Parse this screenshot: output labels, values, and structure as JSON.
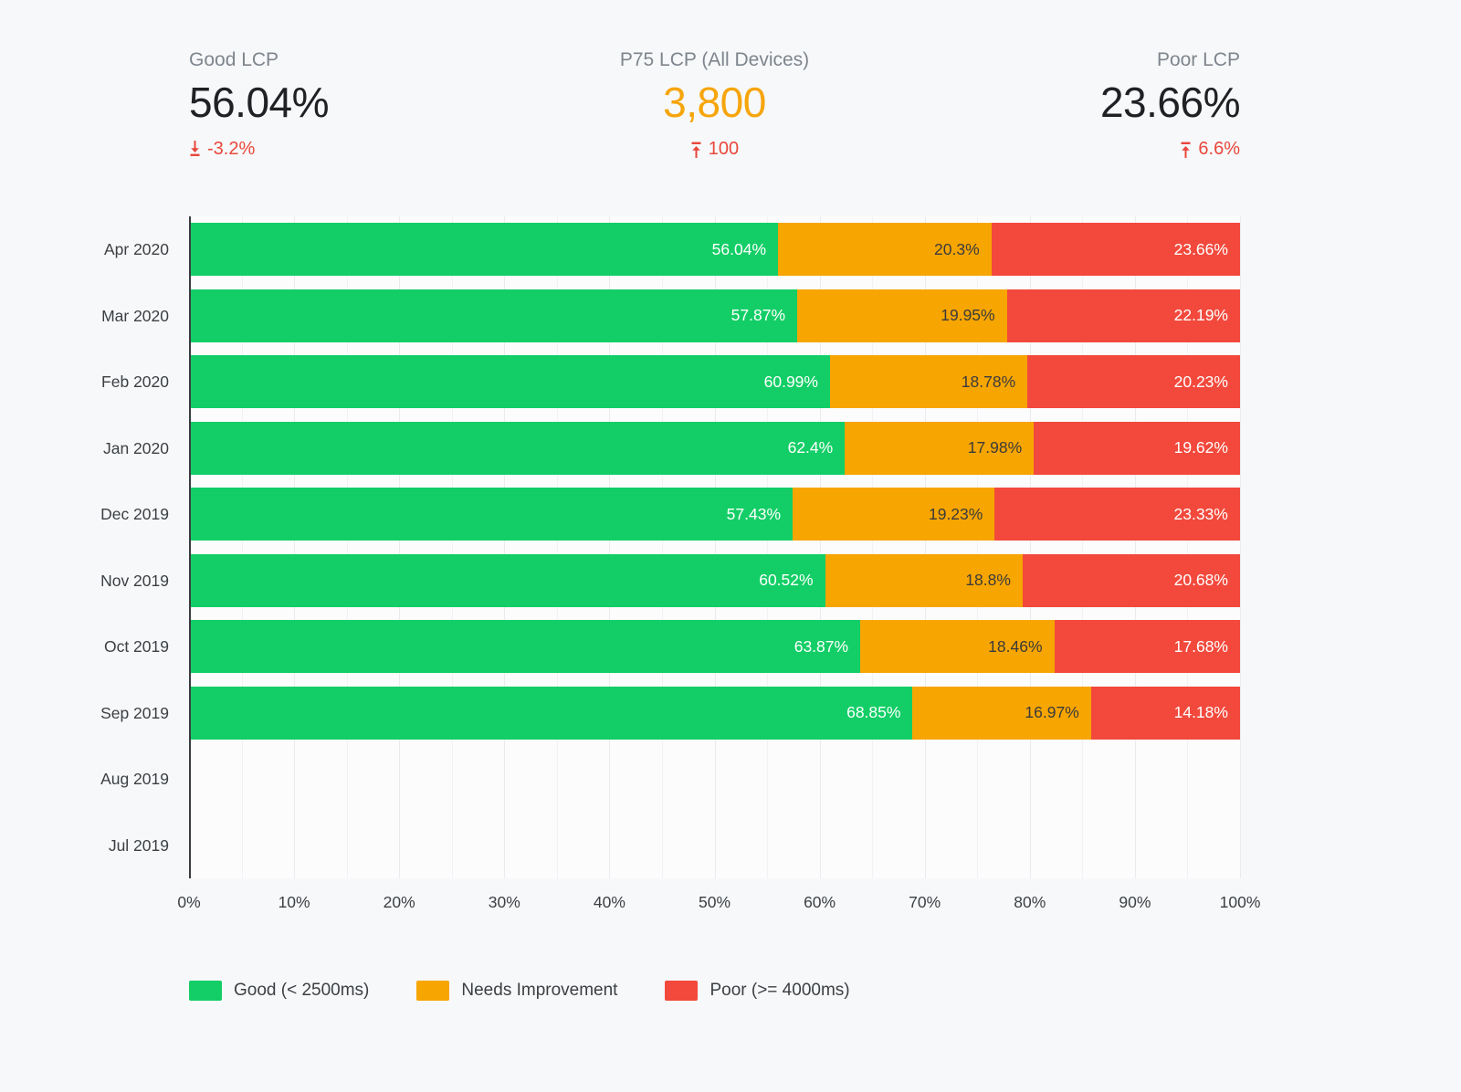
{
  "colors": {
    "good": "#13CE66",
    "needs_improvement": "#F7A501",
    "poor": "#F2493C",
    "delta": "#E8473B",
    "p75_value": "#F6A50B",
    "value_text": "#202124",
    "background": "#F7F8FA"
  },
  "kpis": [
    {
      "id": "good-lcp",
      "label": "Good LCP",
      "value": "56.04%",
      "delta": "-3.2%",
      "trend": "down"
    },
    {
      "id": "p75-lcp",
      "label": "P75 LCP (All Devices)",
      "value": "3,800",
      "delta": "100",
      "trend": "up"
    },
    {
      "id": "poor-lcp",
      "label": "Poor LCP",
      "value": "23.66%",
      "delta": "6.6%",
      "trend": "up"
    }
  ],
  "chart_data": {
    "type": "bar",
    "orientation": "horizontal",
    "stacked": true,
    "title": "",
    "xlabel": "",
    "ylabel": "",
    "xlim": [
      0,
      100
    ],
    "grid": "vertical every 5%",
    "legend_position": "bottom",
    "categories": [
      "Apr 2020",
      "Mar 2020",
      "Feb 2020",
      "Jan 2020",
      "Dec 2019",
      "Nov 2019",
      "Oct 2019",
      "Sep 2019",
      "Aug 2019",
      "Jul 2019"
    ],
    "series": [
      {
        "key": "good",
        "name": "Good (< 2500ms)",
        "color": "#13CE66",
        "label_color": "#FFFFFF",
        "values": [
          56.04,
          57.87,
          60.99,
          62.4,
          57.43,
          60.52,
          63.87,
          68.85,
          null,
          null
        ],
        "labels": [
          "56.04%",
          "57.87%",
          "60.99%",
          "62.4%",
          "57.43%",
          "60.52%",
          "63.87%",
          "68.85%",
          "",
          ""
        ]
      },
      {
        "key": "needs-improvement",
        "name": "Needs Improvement",
        "color": "#F7A501",
        "label_color": "#3B3B3B",
        "values": [
          20.3,
          19.95,
          18.78,
          17.98,
          19.23,
          18.8,
          18.46,
          16.97,
          null,
          null
        ],
        "labels": [
          "20.3%",
          "19.95%",
          "18.78%",
          "17.98%",
          "19.23%",
          "18.8%",
          "18.46%",
          "16.97%",
          "",
          ""
        ]
      },
      {
        "key": "poor",
        "name": "Poor (>= 4000ms)",
        "color": "#F2493C",
        "label_color": "#FFFFFF",
        "values": [
          23.66,
          22.19,
          20.23,
          19.62,
          23.33,
          20.68,
          17.68,
          14.18,
          null,
          null
        ],
        "labels": [
          "23.66%",
          "22.19%",
          "20.23%",
          "19.62%",
          "23.33%",
          "20.68%",
          "17.68%",
          "14.18%",
          "",
          ""
        ]
      }
    ],
    "xticks": [
      "0%",
      "10%",
      "20%",
      "30%",
      "40%",
      "50%",
      "60%",
      "70%",
      "80%",
      "90%",
      "100%"
    ]
  }
}
